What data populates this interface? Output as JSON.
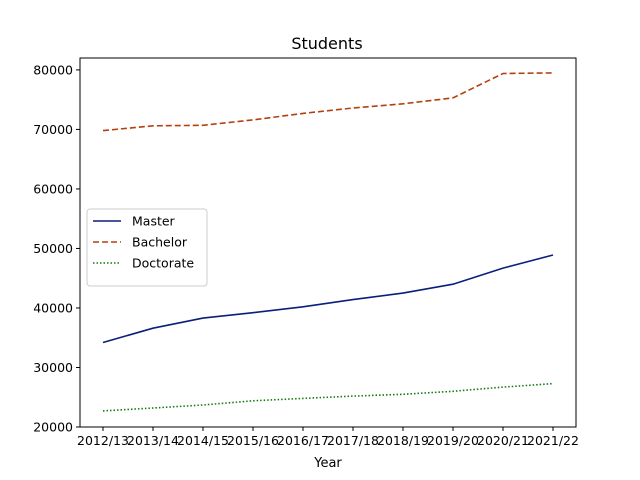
{
  "chart_data": {
    "type": "line",
    "title": "Students",
    "xlabel": "Year",
    "ylabel": "",
    "categories": [
      "2012/13",
      "2013/14",
      "2014/15",
      "2015/16",
      "2016/17",
      "2017/18",
      "2018/19",
      "2019/20",
      "2020/21",
      "2021/22"
    ],
    "ylim": [
      20000,
      82000
    ],
    "yticks": [
      20000,
      30000,
      40000,
      50000,
      60000,
      70000,
      80000
    ],
    "grid": false,
    "legend_position": "center-left",
    "series": [
      {
        "name": "Master",
        "color": "#0a1f7a",
        "dash": "solid",
        "values": [
          34200,
          36600,
          38300,
          39200,
          40200,
          41400,
          42500,
          44000,
          46700,
          48900
        ]
      },
      {
        "name": "Bachelor",
        "color": "#b5400f",
        "dash": "dashed",
        "values": [
          69800,
          70600,
          70700,
          71600,
          72700,
          73600,
          74300,
          75300,
          79400,
          79500
        ]
      },
      {
        "name": "Doctorate",
        "color": "#137a13",
        "dash": "dotted",
        "values": [
          22700,
          23200,
          23700,
          24400,
          24800,
          25200,
          25500,
          26000,
          26700,
          27300
        ]
      }
    ]
  }
}
